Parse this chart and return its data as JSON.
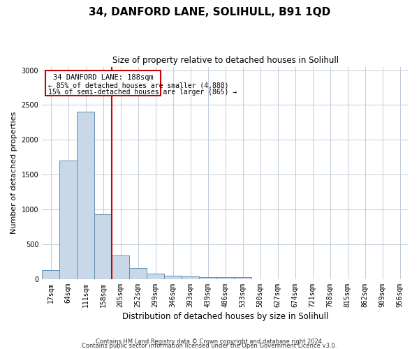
{
  "title": "34, DANFORD LANE, SOLIHULL, B91 1QD",
  "subtitle": "Size of property relative to detached houses in Solihull",
  "xlabel": "Distribution of detached houses by size in Solihull",
  "ylabel": "Number of detached properties",
  "bar_color": "#c8d8e8",
  "bar_edge_color": "#6090b0",
  "background_color": "#ffffff",
  "grid_color": "#c0ccd8",
  "annotation_line_color": "#cc0000",
  "annotation_box_color": "#cc0000",
  "categories": [
    "17sqm",
    "64sqm",
    "111sqm",
    "158sqm",
    "205sqm",
    "252sqm",
    "299sqm",
    "346sqm",
    "393sqm",
    "439sqm",
    "486sqm",
    "533sqm",
    "580sqm",
    "627sqm",
    "674sqm",
    "721sqm",
    "768sqm",
    "815sqm",
    "862sqm",
    "909sqm",
    "956sqm"
  ],
  "values": [
    130,
    1700,
    2400,
    930,
    340,
    155,
    75,
    50,
    35,
    25,
    30,
    25,
    0,
    0,
    0,
    0,
    0,
    0,
    0,
    0,
    0
  ],
  "marker_label": "34 DANFORD LANE: 188sqm",
  "annotation_line1": "← 85% of detached houses are smaller (4,888)",
  "annotation_line2": "15% of semi-detached houses are larger (865) →",
  "ylim": [
    0,
    3050
  ],
  "yticks": [
    0,
    500,
    1000,
    1500,
    2000,
    2500,
    3000
  ],
  "footer_line1": "Contains HM Land Registry data © Crown copyright and database right 2024.",
  "footer_line2": "Contains public sector information licensed under the Open Government Licence v3.0."
}
